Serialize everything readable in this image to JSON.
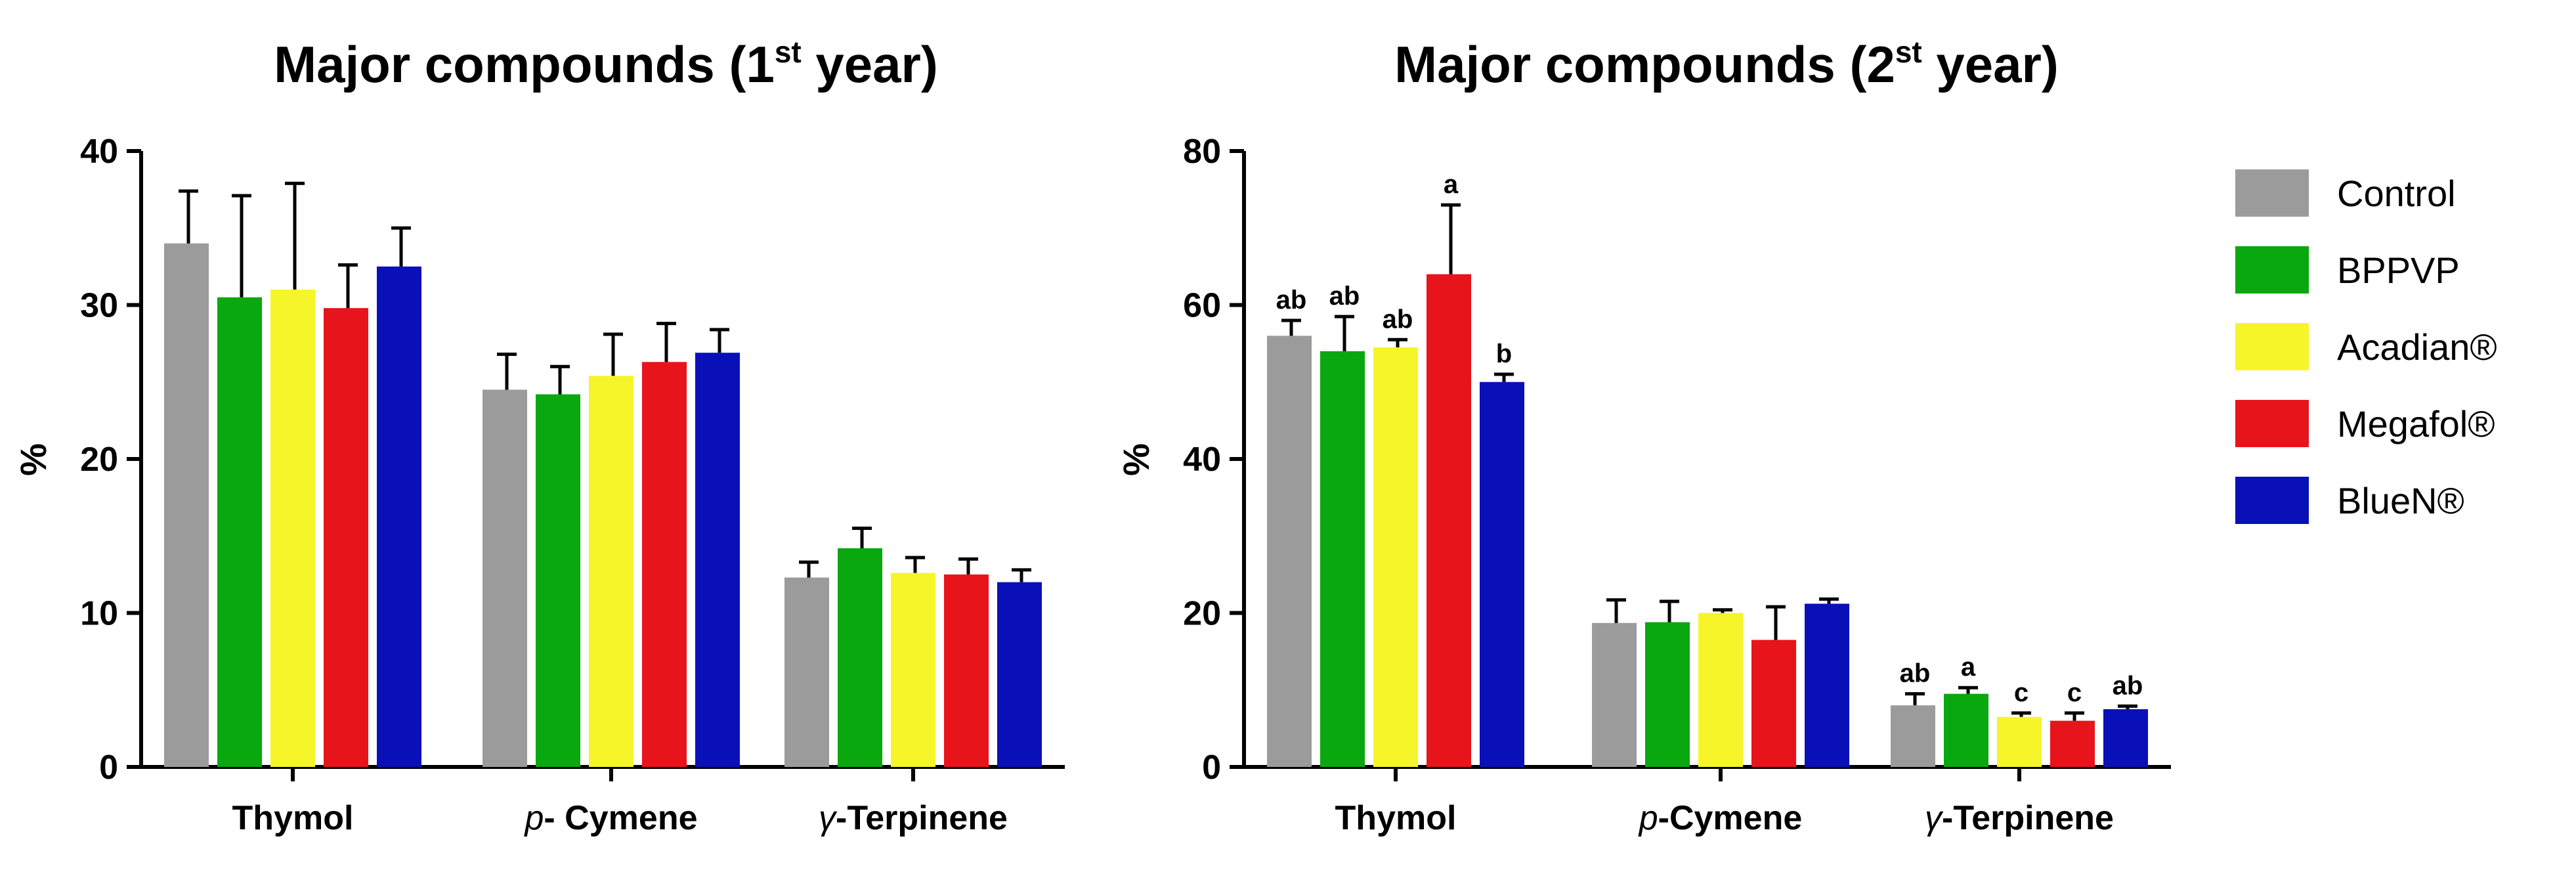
{
  "colors": {
    "Control": "#9b9b9b",
    "BPPVP": "#0aa80f",
    "Acadian®": "#f5f52a",
    "Megafol®": "#e8141b",
    "BlueN®": "#0a10b8"
  },
  "legend": [
    "Control",
    "BPPVP",
    "Acadian®",
    "Megafol®",
    "BlueN®"
  ],
  "chart_data": [
    {
      "type": "bar",
      "title_main": "Major compounds (1",
      "title_sup": "st",
      "title_tail": " year)",
      "ylabel": "%",
      "ylim": [
        0,
        40
      ],
      "yticks": [
        "0",
        "10",
        "20",
        "30",
        "40"
      ],
      "categories": [
        {
          "prefix": "",
          "name": "Thymol"
        },
        {
          "prefix": "p",
          "name": "- Cymene"
        },
        {
          "prefix": "γ",
          "name": "-Terpinene"
        }
      ],
      "series": [
        {
          "name": "Control",
          "values": [
            34,
            24.5,
            12.3
          ],
          "errors": [
            3.4,
            2.3,
            1.0
          ]
        },
        {
          "name": "BPPVP",
          "values": [
            30.5,
            24.2,
            14.2
          ],
          "errors": [
            6.6,
            1.8,
            1.3
          ]
        },
        {
          "name": "Acadian®",
          "values": [
            31,
            25.4,
            12.6
          ],
          "errors": [
            6.9,
            2.7,
            1.0
          ]
        },
        {
          "name": "Megafol®",
          "values": [
            29.8,
            26.3,
            12.5
          ],
          "errors": [
            2.8,
            2.5,
            1.0
          ]
        },
        {
          "name": "BlueN®",
          "values": [
            32.5,
            26.9,
            12.0
          ],
          "errors": [
            2.5,
            1.5,
            0.8
          ]
        }
      ]
    },
    {
      "type": "bar",
      "title_main": "Major compounds (2",
      "title_sup": "st",
      "title_tail": " year)",
      "ylabel": "%",
      "ylim": [
        0,
        80
      ],
      "yticks": [
        "0",
        "20",
        "40",
        "60",
        "80"
      ],
      "categories": [
        {
          "prefix": "",
          "name": "Thymol"
        },
        {
          "prefix": "p",
          "name": "-Cymene"
        },
        {
          "prefix": "γ",
          "name": "-Terpinene"
        }
      ],
      "series": [
        {
          "name": "Control",
          "values": [
            56,
            18.7,
            8.0
          ],
          "errors": [
            2.0,
            3.0,
            1.5
          ],
          "labels": [
            "ab",
            "",
            "ab"
          ]
        },
        {
          "name": "BPPVP",
          "values": [
            54,
            18.8,
            9.5
          ],
          "errors": [
            4.5,
            2.7,
            0.8
          ],
          "labels": [
            "ab",
            "",
            "a"
          ]
        },
        {
          "name": "Acadian®",
          "values": [
            54.5,
            20.0,
            6.5
          ],
          "errors": [
            1.0,
            0.4,
            0.5
          ],
          "labels": [
            "ab",
            "",
            "c"
          ]
        },
        {
          "name": "Megafol®",
          "values": [
            64,
            16.5,
            6.0
          ],
          "errors": [
            9.0,
            4.3,
            1.0
          ],
          "labels": [
            "a",
            "",
            "c"
          ]
        },
        {
          "name": "BlueN®",
          "values": [
            50,
            21.2,
            7.5
          ],
          "errors": [
            1.0,
            0.6,
            0.4
          ],
          "labels": [
            "b",
            "",
            "ab"
          ]
        }
      ]
    }
  ]
}
